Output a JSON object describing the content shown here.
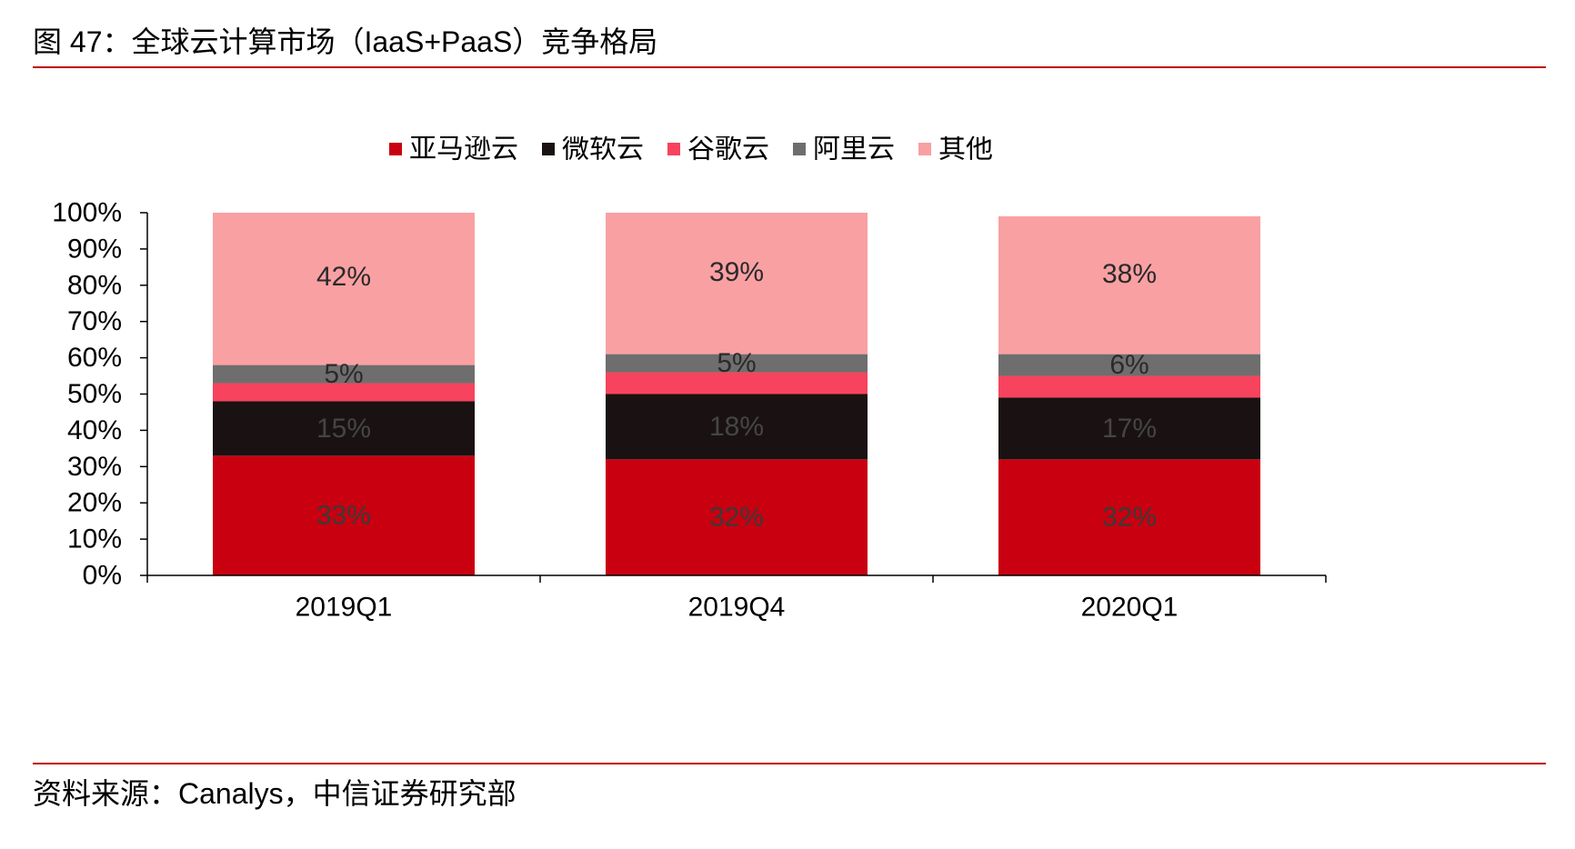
{
  "figure": {
    "title": "图 47：全球云计算市场（IaaS+PaaS）竞争格局",
    "source": "资料来源：Canalys，中信证券研究部",
    "accent_color": "#c00000"
  },
  "chart_data": {
    "type": "bar",
    "stacked": true,
    "title": "",
    "xlabel": "",
    "ylabel": "",
    "ylim": [
      0,
      100
    ],
    "y_unit": "%",
    "y_ticks": [
      0,
      10,
      20,
      30,
      40,
      50,
      60,
      70,
      80,
      90,
      100
    ],
    "y_tick_labels": [
      "0%",
      "10%",
      "20%",
      "30%",
      "40%",
      "50%",
      "60%",
      "70%",
      "80%",
      "90%",
      "100%"
    ],
    "grid": false,
    "legend_position": "top",
    "categories": [
      "2019Q1",
      "2019Q4",
      "2020Q1"
    ],
    "series": [
      {
        "name": "亚马逊云",
        "color": "#c8000f",
        "label_color": "#3a3a3a",
        "values": [
          33,
          32,
          32
        ],
        "labels": [
          "33%",
          "32%",
          "32%"
        ]
      },
      {
        "name": "微软云",
        "color": "#1a1212",
        "label_color": "#454545",
        "values": [
          15,
          18,
          17
        ],
        "labels": [
          "15%",
          "18%",
          "17%"
        ]
      },
      {
        "name": "谷歌云",
        "color": "#f7435e",
        "label_color": "#2a2a2a",
        "values": [
          5,
          6,
          6
        ],
        "labels": [
          "",
          "",
          ""
        ]
      },
      {
        "name": "阿里云",
        "color": "#6e6e6e",
        "label_color": "#2a2a2a",
        "values": [
          5,
          5,
          6
        ],
        "labels": [
          "5%",
          "5%",
          "6%"
        ]
      },
      {
        "name": "其他",
        "color": "#f9a0a3",
        "label_color": "#2a2a2a",
        "values": [
          42,
          39,
          38
        ],
        "labels": [
          "42%",
          "39%",
          "38%"
        ]
      }
    ]
  }
}
